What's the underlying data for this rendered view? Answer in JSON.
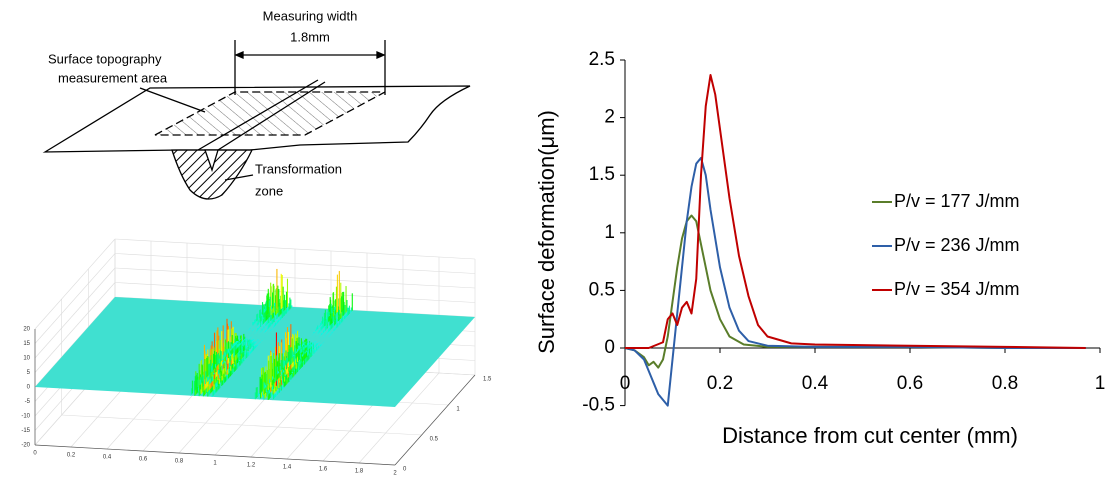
{
  "diagram": {
    "measuring_width": "Measuring width",
    "width_value": "1.8mm",
    "area_label": [
      "Surface topography",
      "measurement  area"
    ],
    "zone_label": [
      "Transformation",
      "zone"
    ]
  },
  "chart_data": [
    {
      "type": "surface3d",
      "surface_color": "#40e0d0",
      "xlim": [
        0,
        2
      ],
      "ylim": [
        0,
        1.5
      ],
      "zlim": [
        -20,
        20
      ],
      "xticks": [
        0,
        0.2,
        0.4,
        0.6,
        0.8,
        1,
        1.2,
        1.4,
        1.6,
        1.8,
        2
      ],
      "yticks": [
        0,
        0.5,
        1,
        1.5
      ],
      "zticks": [
        -20,
        -15,
        -10,
        -5,
        0,
        5,
        10,
        15,
        20
      ],
      "grid": true
    },
    {
      "type": "line",
      "xlabel": "Distance from cut center (mm)",
      "ylabel": "Surface deformation(μm)",
      "xlim": [
        0,
        1
      ],
      "ylim": [
        -0.5,
        2.5
      ],
      "xticks": [
        0,
        0.2,
        0.4,
        0.6,
        0.8,
        1
      ],
      "yticks": [
        -0.5,
        0,
        0.5,
        1,
        1.5,
        2,
        2.5
      ],
      "grid": false,
      "legend": "right",
      "series": [
        {
          "name": "P/v = 177 J/mm",
          "color": "#5a7d2a",
          "x": [
            0,
            0.02,
            0.04,
            0.05,
            0.06,
            0.07,
            0.08,
            0.09,
            0.1,
            0.11,
            0.12,
            0.13,
            0.14,
            0.15,
            0.16,
            0.17,
            0.18,
            0.2,
            0.22,
            0.25,
            0.3,
            0.4,
            0.6,
            0.8,
            0.97
          ],
          "values": [
            0,
            -0.02,
            -0.08,
            -0.15,
            -0.12,
            -0.17,
            -0.1,
            0.1,
            0.4,
            0.7,
            0.95,
            1.1,
            1.15,
            1.1,
            0.9,
            0.7,
            0.5,
            0.25,
            0.1,
            0.03,
            0.01,
            0.01,
            0.01,
            0,
            0
          ]
        },
        {
          "name": "P/v = 236 J/mm",
          "color": "#2e5fa8",
          "x": [
            0,
            0.02,
            0.04,
            0.06,
            0.07,
            0.08,
            0.09,
            0.1,
            0.11,
            0.12,
            0.13,
            0.14,
            0.15,
            0.16,
            0.17,
            0.18,
            0.2,
            0.22,
            0.24,
            0.26,
            0.3,
            0.4,
            0.6,
            0.8,
            0.97
          ],
          "values": [
            0,
            -0.02,
            -0.1,
            -0.3,
            -0.4,
            -0.45,
            -0.5,
            -0.1,
            0.3,
            0.7,
            1.1,
            1.4,
            1.6,
            1.65,
            1.5,
            1.2,
            0.7,
            0.35,
            0.15,
            0.06,
            0.02,
            0.01,
            0.01,
            0,
            0
          ]
        },
        {
          "name": "P/v = 354 J/mm",
          "color": "#c00000",
          "x": [
            0,
            0.05,
            0.08,
            0.09,
            0.1,
            0.11,
            0.12,
            0.13,
            0.14,
            0.15,
            0.16,
            0.17,
            0.18,
            0.19,
            0.2,
            0.22,
            0.24,
            0.26,
            0.28,
            0.3,
            0.35,
            0.4,
            0.6,
            0.8,
            0.97
          ],
          "values": [
            0,
            0,
            0.05,
            0.25,
            0.3,
            0.2,
            0.35,
            0.4,
            0.3,
            0.6,
            1.5,
            2.1,
            2.37,
            2.2,
            1.9,
            1.3,
            0.8,
            0.45,
            0.2,
            0.1,
            0.04,
            0.03,
            0.02,
            0.01,
            0
          ]
        }
      ]
    }
  ]
}
